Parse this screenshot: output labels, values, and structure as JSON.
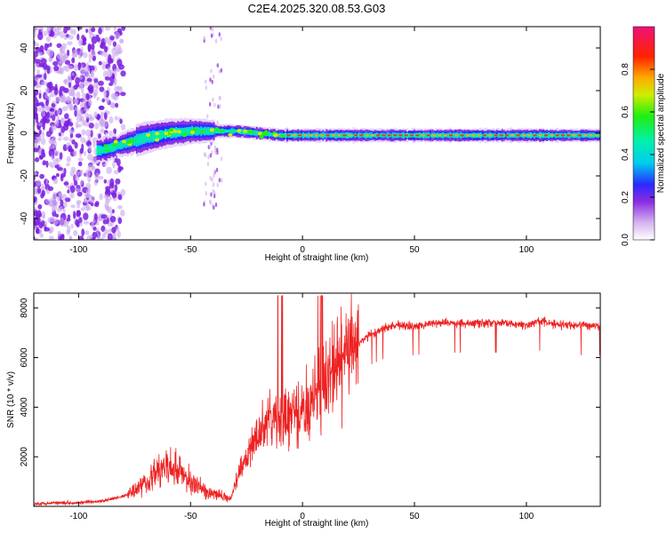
{
  "chart_data": [
    {
      "type": "heatmap",
      "title": "C2E4.2025.320.08.53.G03",
      "xlabel": "Height of straight line (km)",
      "ylabel": "Frequency (Hz)",
      "xlim": [
        -120,
        133
      ],
      "ylim": [
        -50,
        50
      ],
      "xticks": [
        "-100",
        "-50",
        "0",
        "50",
        "100"
      ],
      "yticks": [
        "-40",
        "-20",
        "0",
        "20",
        "40"
      ],
      "colorbar": {
        "label": "Normalized spectral amplitude",
        "range": [
          0.0,
          1.0
        ],
        "ticks": [
          "0.0",
          "0.2",
          "0.4",
          "0.6",
          "0.8"
        ]
      },
      "trace": {
        "description": "Doppler line",
        "x": [
          -90,
          -80,
          -70,
          -60,
          -50,
          -40,
          -30,
          -20,
          -10,
          0,
          20,
          50,
          100,
          133
        ],
        "freq": [
          -8,
          -5,
          -2,
          0,
          1,
          1,
          1,
          0,
          -1,
          -1,
          -1,
          -1,
          -1,
          -1
        ]
      }
    },
    {
      "type": "line",
      "title": "",
      "xlabel": "Height of straight line (km)",
      "ylabel": "SNR (10 * v/v)",
      "xlim": [
        -120,
        133
      ],
      "ylim": [
        0,
        8600
      ],
      "xticks": [
        "-100",
        "-50",
        "0",
        "50",
        "100"
      ],
      "yticks": [
        "2000",
        "4000",
        "6000",
        "8000"
      ],
      "series": [
        {
          "name": "SNR",
          "color": "#ee2222",
          "x": [
            -120,
            -110,
            -100,
            -90,
            -80,
            -75,
            -70,
            -65,
            -60,
            -55,
            -50,
            -45,
            -40,
            -35,
            -32,
            -30,
            -25,
            -20,
            -15,
            -10,
            -5,
            0,
            5,
            10,
            15,
            20,
            25,
            30,
            35,
            40,
            50,
            60,
            70,
            80,
            90,
            100,
            105,
            110,
            120,
            133
          ],
          "y": [
            100,
            150,
            150,
            200,
            400,
            700,
            1000,
            1400,
            1600,
            1400,
            1000,
            700,
            500,
            400,
            300,
            1000,
            2000,
            2800,
            3500,
            3400,
            3600,
            3800,
            4300,
            5000,
            5600,
            6200,
            6600,
            6900,
            7100,
            7300,
            7300,
            7400,
            7400,
            7400,
            7400,
            7300,
            7500,
            7400,
            7300,
            7300
          ]
        }
      ]
    }
  ],
  "colors": {
    "line": "#ee2222",
    "background": "#ffffff"
  }
}
